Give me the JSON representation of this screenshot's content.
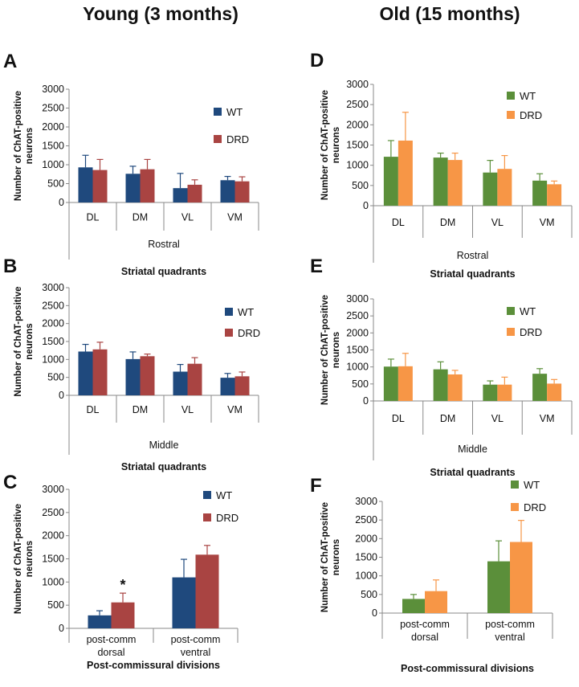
{
  "headings": {
    "young": "Young (3 months)",
    "old": "Old (15 months)"
  },
  "colors": {
    "young_wt": "#1f497d",
    "young_drd": "#a94442",
    "old_wt": "#5b8f3a",
    "old_drd": "#f79646"
  },
  "chart_data": [
    {
      "id": "A",
      "type": "bar",
      "panel_letter": "A",
      "categories": [
        "DL",
        "DM",
        "VL",
        "VM"
      ],
      "group_label": "Rostral",
      "xlabel": "Striatal quadrants",
      "ylabel_line1": "Number of ChAT-positive",
      "ylabel_line2": "neurons",
      "ylim": [
        0,
        3000
      ],
      "yticks": [
        "0",
        "500",
        "1000",
        "1500",
        "2000",
        "2500",
        "3000"
      ],
      "series": [
        {
          "name": "WT",
          "values": [
            930,
            760,
            380,
            590
          ],
          "errors": [
            320,
            200,
            390,
            100
          ]
        },
        {
          "name": "DRD",
          "values": [
            860,
            880,
            470,
            560
          ],
          "errors": [
            280,
            260,
            130,
            120
          ]
        }
      ]
    },
    {
      "id": "B",
      "type": "bar",
      "panel_letter": "B",
      "categories": [
        "DL",
        "DM",
        "VL",
        "VM"
      ],
      "group_label": "Middle",
      "xlabel": "Striatal quadrants",
      "ylabel_line1": "Number of ChAT-positive",
      "ylabel_line2": "neurons",
      "ylim": [
        0,
        3000
      ],
      "yticks": [
        "0",
        "500",
        "1000",
        "1500",
        "2000",
        "2500",
        "3000"
      ],
      "series": [
        {
          "name": "WT",
          "values": [
            1220,
            1010,
            660,
            490
          ],
          "errors": [
            200,
            200,
            200,
            120
          ]
        },
        {
          "name": "DRD",
          "values": [
            1280,
            1090,
            880,
            530
          ],
          "errors": [
            200,
            60,
            170,
            120
          ]
        }
      ]
    },
    {
      "id": "C",
      "type": "bar",
      "panel_letter": "C",
      "categories": [
        [
          "post-comm",
          "dorsal"
        ],
        [
          "post-comm",
          "ventral"
        ]
      ],
      "xlabel": "Post-commissural divisions",
      "ylabel_line1": "Number of ChAT-positive",
      "ylabel_line2": "neurons",
      "ylim": [
        0,
        3000
      ],
      "yticks": [
        "0",
        "500",
        "1000",
        "1500",
        "2000",
        "2500",
        "3000"
      ],
      "annotation": "*",
      "series": [
        {
          "name": "WT",
          "values": [
            280,
            1100
          ],
          "errors": [
            100,
            390
          ]
        },
        {
          "name": "DRD",
          "values": [
            560,
            1590
          ],
          "errors": [
            200,
            200
          ]
        }
      ]
    },
    {
      "id": "D",
      "type": "bar",
      "panel_letter": "D",
      "categories": [
        "DL",
        "DM",
        "VL",
        "VM"
      ],
      "group_label": "Rostral",
      "xlabel": "Striatal quadrants",
      "ylabel_line1": "Number of ChAT-positive",
      "ylabel_line2": "neurons",
      "ylim": [
        0,
        3000
      ],
      "yticks": [
        "0",
        "500",
        "1000",
        "1500",
        "2000",
        "2500",
        "3000"
      ],
      "series": [
        {
          "name": "WT",
          "values": [
            1210,
            1190,
            820,
            620
          ],
          "errors": [
            400,
            110,
            300,
            170
          ]
        },
        {
          "name": "DRD",
          "values": [
            1610,
            1130,
            910,
            530
          ],
          "errors": [
            700,
            170,
            330,
            80
          ]
        }
      ]
    },
    {
      "id": "E",
      "type": "bar",
      "panel_letter": "E",
      "categories": [
        "DL",
        "DM",
        "VL",
        "VM"
      ],
      "group_label": "Middle",
      "xlabel": "Striatal quadrants",
      "ylabel_line1": "Number of ChAT-positive",
      "ylabel_line2": "neurons",
      "ylim": [
        0,
        3000
      ],
      "yticks": [
        "0",
        "500",
        "1000",
        "1500",
        "2000",
        "2500",
        "3000"
      ],
      "series": [
        {
          "name": "WT",
          "values": [
            1010,
            930,
            480,
            800
          ],
          "errors": [
            220,
            220,
            110,
            150
          ]
        },
        {
          "name": "DRD",
          "values": [
            1020,
            780,
            480,
            510
          ],
          "errors": [
            380,
            120,
            220,
            120
          ]
        }
      ]
    },
    {
      "id": "F",
      "type": "bar",
      "panel_letter": "F",
      "categories": [
        [
          "post-comm",
          "dorsal"
        ],
        [
          "post-comm",
          "ventral"
        ]
      ],
      "xlabel": "Post-commissural divisions",
      "ylabel_line1": "Number of ChAT-positive",
      "ylabel_line2": "neurons",
      "ylim": [
        0,
        3000
      ],
      "yticks": [
        "0",
        "500",
        "1000",
        "1500",
        "2000",
        "2500",
        "3000"
      ],
      "series": [
        {
          "name": "WT",
          "values": [
            380,
            1390
          ],
          "errors": [
            120,
            550
          ]
        },
        {
          "name": "DRD",
          "values": [
            590,
            1910
          ],
          "errors": [
            300,
            580
          ]
        }
      ]
    }
  ]
}
